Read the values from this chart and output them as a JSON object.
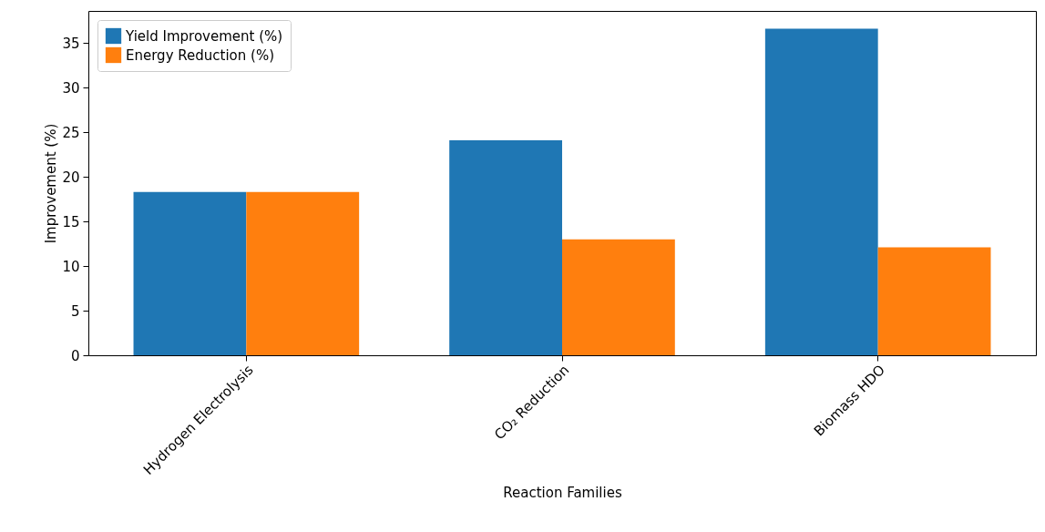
{
  "chart_data": {
    "type": "bar",
    "xlabel": "Reaction Families",
    "ylabel": "Improvement (%)",
    "categories": [
      "Hydrogen Electrolysis",
      "CO₂ Reduction",
      "Biomass HDO"
    ],
    "series": [
      {
        "name": "Yield Improvement (%)",
        "color": "#1f77b4",
        "values": [
          18.3,
          24.1,
          36.6
        ]
      },
      {
        "name": "Energy Reduction (%)",
        "color": "#ff7f0e",
        "values": [
          18.3,
          13.0,
          12.1
        ]
      }
    ],
    "ylim": [
      0,
      38.6
    ],
    "yticks": [
      0,
      5,
      10,
      15,
      20,
      25,
      30,
      35
    ],
    "grid": false,
    "legend": "top left"
  }
}
